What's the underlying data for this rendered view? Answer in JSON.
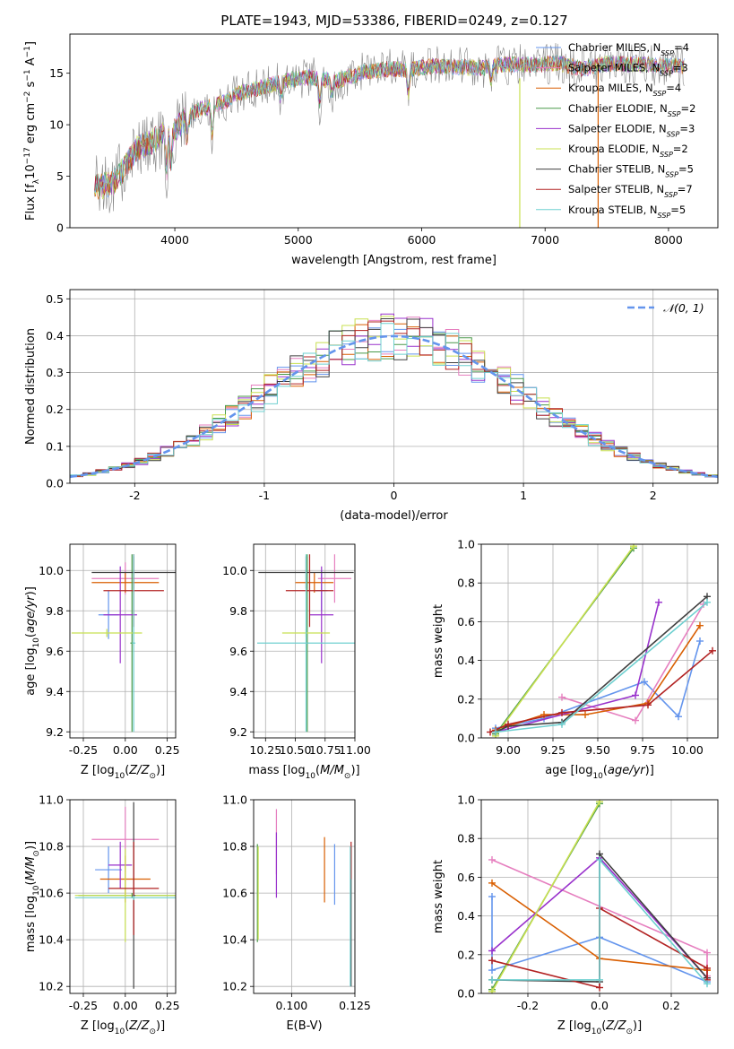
{
  "figure": {
    "title": "PLATE=1943, MJD=53386, FIBERID=0249, z=0.127"
  },
  "models": [
    {
      "label": "Chabrier MILES",
      "nssp": "4",
      "color": "#6495ed"
    },
    {
      "label": "Salpeter MILES",
      "nssp": "3",
      "color": "#e67fbf"
    },
    {
      "label": "Kroupa MILES",
      "nssp": "4",
      "color": "#d95f02"
    },
    {
      "label": "Chabrier ELODIE",
      "nssp": "2",
      "color": "#4a9a4a"
    },
    {
      "label": "Salpeter ELODIE",
      "nssp": "3",
      "color": "#9932cc"
    },
    {
      "label": "Kroupa ELODIE",
      "nssp": "2",
      "color": "#c8e050"
    },
    {
      "label": "Chabrier STELIB",
      "nssp": "5",
      "color": "#404040"
    },
    {
      "label": "Salpeter STELIB",
      "nssp": "7",
      "color": "#b22222"
    },
    {
      "label": "Kroupa STELIB",
      "nssp": "5",
      "color": "#6fd0d0"
    }
  ],
  "chart_data": [
    {
      "id": "spectrum",
      "type": "line",
      "title": "PLATE=1943, MJD=53386, FIBERID=0249, z=0.127",
      "xlabel": "wavelength [Angstrom, rest frame]",
      "ylabel": "Flux [f_λ 10^-17 erg cm^-2 s^-1 A^-1]",
      "xlim": [
        3150,
        8400
      ],
      "ylim": [
        0,
        18.8
      ],
      "xticks": [
        4000,
        5000,
        6000,
        7000,
        8000
      ],
      "yticks": [
        0,
        5,
        10,
        15
      ],
      "continuum": {
        "x": [
          3350,
          3500,
          3600,
          3700,
          3800,
          3900,
          4000,
          4100,
          4200,
          4300,
          4400,
          4500,
          4700,
          4900,
          5100,
          5300,
          5500,
          5700,
          5900,
          6100,
          6300,
          6500,
          6700,
          6900,
          7100,
          7300,
          7500,
          7700,
          7900,
          8100
        ],
        "y": [
          3.9,
          4.3,
          6.0,
          7.8,
          8.2,
          9.0,
          9.5,
          10.8,
          11.5,
          11.8,
          12.2,
          13.0,
          13.6,
          14.3,
          14.6,
          14.2,
          15.0,
          15.4,
          15.4,
          15.7,
          15.6,
          15.5,
          15.9,
          15.8,
          16.0,
          15.4,
          15.9,
          15.9,
          15.7,
          15.7
        ]
      },
      "legend": "top-right"
    },
    {
      "id": "residuals",
      "type": "line",
      "xlabel": "(data-model)/error",
      "ylabel": "Normed distribution",
      "xlim": [
        -2.5,
        2.5
      ],
      "ylim": [
        0,
        0.525
      ],
      "xticks": [
        -2,
        -1,
        0,
        1,
        2
      ],
      "yticks": [
        0.0,
        0.1,
        0.2,
        0.3,
        0.4,
        0.5
      ],
      "reference": {
        "name": "𝒩(0, 1)",
        "mean": 0,
        "sigma": 1,
        "color": "#6495ed"
      },
      "bin_width": 0.1,
      "legend": "top-right"
    },
    {
      "id": "age-vs-z",
      "type": "scatter",
      "xlabel": "Z [log10(Z/Z⊙)]",
      "ylabel": "age [log10(age/yr)]",
      "xlim": [
        -0.33,
        0.3
      ],
      "ylim": [
        9.17,
        10.13
      ],
      "xticks": [
        -0.25,
        0.0,
        0.25
      ],
      "yticks": [
        9.2,
        9.4,
        9.6,
        9.8,
        10.0
      ],
      "points": [
        {
          "x": -0.1,
          "y": 9.78,
          "xerr": 0.06,
          "yerr": 0.12,
          "color": "#6495ed"
        },
        {
          "x": 0.0,
          "y": 9.96,
          "xerr": 0.2,
          "yerr": 0.08,
          "color": "#e67fbf"
        },
        {
          "x": 0.0,
          "y": 9.94,
          "xerr": 0.2,
          "yerr": 0.05,
          "color": "#d95f02"
        },
        {
          "x": 0.04,
          "y": 9.64,
          "xerr": 0.01,
          "yerr": 0.44,
          "color": "#4a9a4a"
        },
        {
          "x": -0.03,
          "y": 9.78,
          "xerr": 0.1,
          "yerr": 0.24,
          "color": "#9932cc"
        },
        {
          "x": -0.11,
          "y": 9.69,
          "xerr": 0.21,
          "yerr": 0.02,
          "color": "#c8e050"
        },
        {
          "x": 0.05,
          "y": 9.99,
          "xerr": 0.25,
          "yerr": 0.08,
          "color": "#404040"
        },
        {
          "x": 0.05,
          "y": 9.9,
          "xerr": 0.18,
          "yerr": 0.18,
          "color": "#b22222"
        },
        {
          "x": 0.05,
          "y": 9.64,
          "xerr": 0.01,
          "yerr": 0.44,
          "color": "#6fd0d0"
        }
      ]
    },
    {
      "id": "age-vs-mass",
      "type": "scatter",
      "xlabel": "mass [log10(M/M⊙)]",
      "ylabel": "",
      "xlim": [
        10.15,
        11.0
      ],
      "ylim": [
        9.17,
        10.13
      ],
      "xticks": [
        10.25,
        10.5,
        10.75,
        11.0
      ],
      "yticks": [
        9.2,
        9.4,
        9.6,
        9.8,
        10.0
      ],
      "points": [
        {
          "x": 10.72,
          "y": 9.9,
          "xerr": 0.05,
          "yerr": 0.1,
          "color": "#6495ed"
        },
        {
          "x": 10.83,
          "y": 9.96,
          "xerr": 0.14,
          "yerr": 0.12,
          "color": "#e67fbf"
        },
        {
          "x": 10.66,
          "y": 9.94,
          "xerr": 0.16,
          "yerr": 0.05,
          "color": "#d95f02"
        },
        {
          "x": 10.6,
          "y": 9.64,
          "xerr": 0.01,
          "yerr": 0.44,
          "color": "#4a9a4a"
        },
        {
          "x": 10.72,
          "y": 9.78,
          "xerr": 0.1,
          "yerr": 0.24,
          "color": "#9932cc"
        },
        {
          "x": 10.59,
          "y": 9.69,
          "xerr": 0.2,
          "yerr": 0.02,
          "color": "#c8e050"
        },
        {
          "x": 10.59,
          "y": 9.99,
          "xerr": 0.4,
          "yerr": 0.08,
          "color": "#404040"
        },
        {
          "x": 10.62,
          "y": 9.9,
          "xerr": 0.2,
          "yerr": 0.18,
          "color": "#b22222"
        },
        {
          "x": 10.59,
          "y": 9.64,
          "xerr": 0.41,
          "yerr": 0.44,
          "color": "#6fd0d0"
        }
      ]
    },
    {
      "id": "weight-vs-age",
      "type": "line",
      "xlabel": "age [log10(age/yr)]",
      "ylabel": "mass weight",
      "xlim": [
        8.85,
        10.17
      ],
      "ylim": [
        0,
        1.0
      ],
      "xticks": [
        9.0,
        9.25,
        9.5,
        9.75,
        10.0
      ],
      "yticks": [
        0.0,
        0.2,
        0.4,
        0.6,
        0.8,
        1.0
      ],
      "series": [
        {
          "color": "#6495ed",
          "x": [
            8.93,
            9.2,
            9.76,
            9.95,
            10.07
          ],
          "y": [
            0.05,
            0.1,
            0.29,
            0.11,
            0.5
          ]
        },
        {
          "color": "#e67fbf",
          "x": [
            9.3,
            9.71,
            10.09
          ],
          "y": [
            0.21,
            0.09,
            0.69
          ]
        },
        {
          "color": "#d95f02",
          "x": [
            8.93,
            9.2,
            9.43,
            9.78,
            10.07
          ],
          "y": [
            0.04,
            0.12,
            0.12,
            0.18,
            0.58
          ]
        },
        {
          "color": "#4a9a4a",
          "x": [
            8.93,
            9.7
          ],
          "y": [
            0.02,
            0.98
          ]
        },
        {
          "color": "#9932cc",
          "x": [
            8.93,
            9.71,
            9.84
          ],
          "y": [
            0.03,
            0.22,
            0.7
          ]
        },
        {
          "color": "#c8e050",
          "x": [
            8.93,
            9.7
          ],
          "y": [
            0.01,
            0.99
          ]
        },
        {
          "color": "#404040",
          "x": [
            8.93,
            9.0,
            9.3,
            10.11
          ],
          "y": [
            0.03,
            0.06,
            0.08,
            0.73
          ]
        },
        {
          "color": "#b22222",
          "x": [
            8.9,
            9.0,
            9.3,
            9.78,
            10.14
          ],
          "y": [
            0.03,
            0.07,
            0.13,
            0.17,
            0.45
          ]
        },
        {
          "color": "#6fd0d0",
          "x": [
            8.93,
            9.3,
            10.11
          ],
          "y": [
            0.03,
            0.07,
            0.7
          ]
        }
      ]
    },
    {
      "id": "mass-vs-z",
      "type": "scatter",
      "xlabel": "Z [log10(Z/Z⊙)]",
      "ylabel": "mass [log10(M/M⊙)]",
      "xlim": [
        -0.33,
        0.3
      ],
      "ylim": [
        10.17,
        11.0
      ],
      "xticks": [
        -0.25,
        0.0,
        0.25
      ],
      "yticks": [
        10.2,
        10.4,
        10.6,
        10.8,
        11.0
      ],
      "points": [
        {
          "x": -0.1,
          "y": 10.7,
          "xerr": 0.08,
          "yerr": 0.1,
          "color": "#6495ed"
        },
        {
          "x": 0.0,
          "y": 10.83,
          "xerr": 0.2,
          "yerr": 0.14,
          "color": "#e67fbf"
        },
        {
          "x": 0.0,
          "y": 10.66,
          "xerr": 0.15,
          "yerr": 0.1,
          "color": "#d95f02"
        },
        {
          "x": 0.04,
          "y": 10.59,
          "xerr": 0.32,
          "yerr": 0.01,
          "color": "#4a9a4a"
        },
        {
          "x": -0.03,
          "y": 10.72,
          "xerr": 0.07,
          "yerr": 0.1,
          "color": "#9932cc"
        },
        {
          "x": 0.0,
          "y": 10.59,
          "xerr": 0.3,
          "yerr": 0.2,
          "color": "#c8e050"
        },
        {
          "x": 0.05,
          "y": 10.59,
          "xerr": 0.01,
          "yerr": 0.4,
          "color": "#404040"
        },
        {
          "x": 0.05,
          "y": 10.62,
          "xerr": 0.15,
          "yerr": 0.2,
          "color": "#b22222"
        },
        {
          "x": 0.05,
          "y": 10.58,
          "xerr": 0.35,
          "yerr": 0.01,
          "color": "#6fd0d0"
        }
      ]
    },
    {
      "id": "mass-vs-ebv",
      "type": "scatter",
      "xlabel": "E(B-V)",
      "ylabel": "",
      "xlim": [
        0.085,
        0.125
      ],
      "ylim": [
        10.17,
        11.0
      ],
      "xticks": [
        0.1,
        0.125
      ],
      "yticks": [
        10.2,
        10.4,
        10.6,
        10.8,
        11.0
      ],
      "points": [
        {
          "x": 0.117,
          "y": 10.68,
          "xerr": 0,
          "yerr": 0.13,
          "color": "#6495ed"
        },
        {
          "x": 0.094,
          "y": 10.82,
          "xerr": 0,
          "yerr": 0.14,
          "color": "#e67fbf"
        },
        {
          "x": 0.113,
          "y": 10.7,
          "xerr": 0,
          "yerr": 0.14,
          "color": "#d95f02"
        },
        {
          "x": 0.0865,
          "y": 10.6,
          "xerr": 0,
          "yerr": 0.21,
          "color": "#4a9a4a"
        },
        {
          "x": 0.094,
          "y": 10.72,
          "xerr": 0,
          "yerr": 0.14,
          "color": "#9932cc"
        },
        {
          "x": 0.0868,
          "y": 10.6,
          "xerr": 0,
          "yerr": 0.2,
          "color": "#c8e050"
        },
        {
          "x": 0.1235,
          "y": 10.5,
          "xerr": 0,
          "yerr": 0.3,
          "color": "#404040"
        },
        {
          "x": 0.1235,
          "y": 10.74,
          "xerr": 0,
          "yerr": 0.08,
          "color": "#b22222"
        },
        {
          "x": 0.1232,
          "y": 10.5,
          "xerr": 0,
          "yerr": 0.3,
          "color": "#6fd0d0"
        }
      ]
    },
    {
      "id": "weight-vs-z",
      "type": "line",
      "xlabel": "Z [log10(Z/Z⊙)]",
      "ylabel": "mass weight",
      "xlim": [
        -0.33,
        0.33
      ],
      "ylim": [
        0,
        1.0
      ],
      "xticks": [
        -0.2,
        0.0,
        0.2
      ],
      "yticks": [
        0.0,
        0.2,
        0.4,
        0.6,
        0.8,
        1.0
      ],
      "series": [
        {
          "color": "#6495ed",
          "x": [
            -0.3,
            -0.3,
            0.0,
            0.3
          ],
          "y": [
            0.5,
            0.12,
            0.29,
            0.06
          ]
        },
        {
          "color": "#e67fbf",
          "x": [
            -0.3,
            0.3,
            0.3
          ],
          "y": [
            0.69,
            0.21,
            0.09
          ]
        },
        {
          "color": "#d95f02",
          "x": [
            -0.3,
            0.0,
            0.3,
            0.3
          ],
          "y": [
            0.57,
            0.18,
            0.12,
            0.12
          ]
        },
        {
          "color": "#4a9a4a",
          "x": [
            -0.3,
            0.0
          ],
          "y": [
            0.02,
            0.98
          ]
        },
        {
          "color": "#9932cc",
          "x": [
            -0.3,
            0.0,
            0.3
          ],
          "y": [
            0.22,
            0.7,
            0.08
          ]
        },
        {
          "color": "#c8e050",
          "x": [
            -0.3,
            0.0
          ],
          "y": [
            0.01,
            0.99
          ]
        },
        {
          "color": "#404040",
          "x": [
            -0.3,
            0.0,
            0.0,
            0.3
          ],
          "y": [
            0.07,
            0.06,
            0.72,
            0.08
          ]
        },
        {
          "color": "#b22222",
          "x": [
            -0.3,
            0.0,
            0.0,
            0.3,
            0.3
          ],
          "y": [
            0.17,
            0.03,
            0.44,
            0.13,
            0.07
          ]
        },
        {
          "color": "#6fd0d0",
          "x": [
            -0.3,
            0.0,
            0.0,
            0.3
          ],
          "y": [
            0.07,
            0.07,
            0.69,
            0.05
          ]
        }
      ]
    }
  ]
}
